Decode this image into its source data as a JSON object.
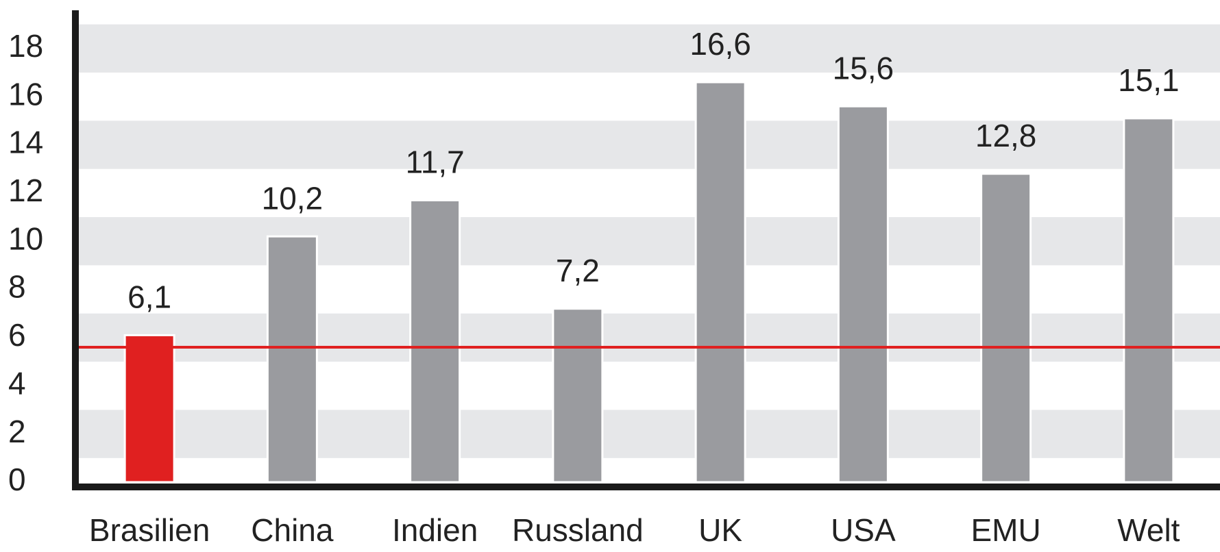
{
  "chart_data": {
    "type": "bar",
    "categories": [
      "Brasilien",
      "China",
      "Indien",
      "Russland",
      "UK",
      "USA",
      "EMU",
      "Welt"
    ],
    "values": [
      6.1,
      10.2,
      11.7,
      7.2,
      16.6,
      15.6,
      12.8,
      15.1
    ],
    "value_labels": [
      "6,1",
      "10,2",
      "11,7",
      "7,2",
      "16,6",
      "15,6",
      "12,8",
      "15,1"
    ],
    "colors": [
      "#e02020",
      "#9a9b9f",
      "#9a9b9f",
      "#9a9b9f",
      "#9a9b9f",
      "#9a9b9f",
      "#9a9b9f",
      "#9a9b9f"
    ],
    "ylim": [
      0,
      19.5
    ],
    "yticks": [
      0,
      2,
      4,
      6,
      8,
      10,
      12,
      14,
      16,
      18
    ],
    "grid": "bands",
    "band_color": "#e6e7e9",
    "reference_line": {
      "value": 5.6,
      "color": "#e02020"
    }
  }
}
